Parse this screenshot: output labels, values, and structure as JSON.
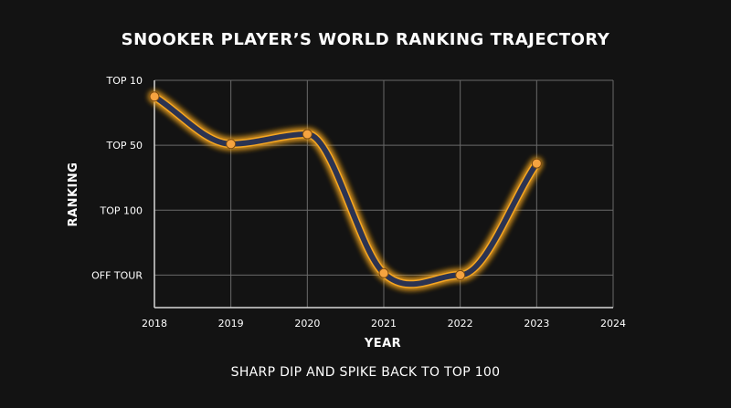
{
  "chart_data": {
    "type": "line",
    "title": "SNOOKER PLAYER’S WORLD RANKING TRAJECTORY",
    "subtitle": "SHARP DIP AND SPIKE BACK TO TOP 100",
    "xlabel": "YEAR",
    "ylabel": "RANKING",
    "x_ticks": [
      "2018",
      "2019",
      "2020",
      "2021",
      "2022",
      "2023",
      "2024"
    ],
    "xlim": [
      2018,
      2024
    ],
    "y_ticks": [
      {
        "label": "TOP 10",
        "level": 4
      },
      {
        "label": "TOP 50",
        "level": 3
      },
      {
        "label": "TOP 100",
        "level": 2
      },
      {
        "label": "OFF TOUR",
        "level": 1
      }
    ],
    "ylim": [
      0.5,
      4
    ],
    "grid": true,
    "series": [
      {
        "x": [
          2018,
          2019,
          2020,
          2021,
          2022,
          2023
        ],
        "y": [
          3.75,
          3.02,
          3.17,
          1.03,
          1.0,
          2.72
        ]
      }
    ],
    "line_color": "#2b3352",
    "glow_color": "#f5a623",
    "marker_color": "#f5a340"
  }
}
